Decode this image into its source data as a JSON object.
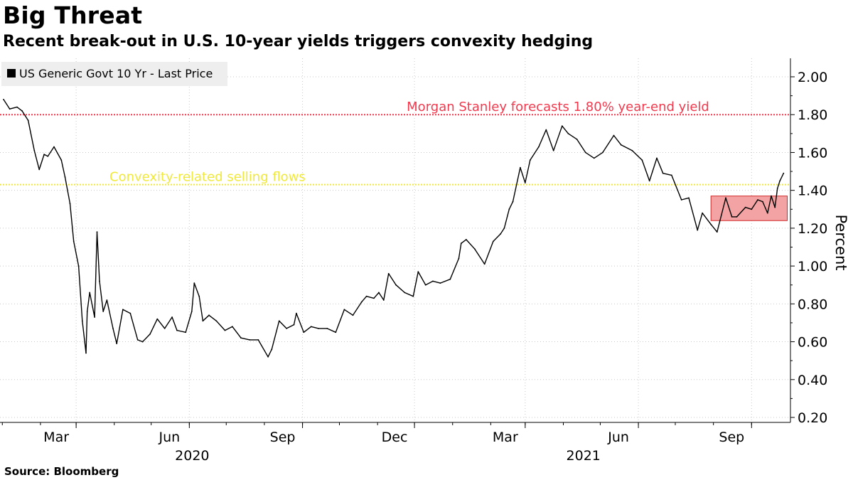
{
  "header": {
    "title": "Big Threat",
    "subtitle": "Recent break-out in U.S. 10-year yields triggers convexity hedging"
  },
  "footer": {
    "source": "Source: Bloomberg"
  },
  "chart_data": {
    "type": "line",
    "legend": {
      "entries": [
        "US Generic Govt 10 Yr - Last Price"
      ],
      "placement": "top-left"
    },
    "ylabel": "Percent",
    "ylim": [
      0.18,
      2.1
    ],
    "xlim": [
      "2020-01-02",
      "2021-09-17"
    ],
    "y_axis_side": "right",
    "grid": true,
    "y_ticks": [
      "0.20",
      "0.40",
      "0.60",
      "0.80",
      "1.00",
      "1.20",
      "1.40",
      "1.60",
      "1.80",
      "2.00"
    ],
    "x_ticks": [
      {
        "date": "2020-03-01",
        "label": "Mar"
      },
      {
        "date": "2020-06-01",
        "label": "Jun"
      },
      {
        "date": "2020-09-01",
        "label": "Sep"
      },
      {
        "date": "2020-12-01",
        "label": "Dec"
      },
      {
        "date": "2021-03-01",
        "label": "Mar"
      },
      {
        "date": "2021-06-01",
        "label": "Jun"
      },
      {
        "date": "2021-09-01",
        "label": "Sep"
      }
    ],
    "year_labels": [
      {
        "date": "2020-06-01",
        "label": "2020"
      },
      {
        "date": "2021-04-15",
        "label": "2021"
      }
    ],
    "series": [
      {
        "name": "US Generic Govt 10 Yr - Last Price",
        "color": "#000000",
        "points": [
          [
            "2020-01-02",
            1.88
          ],
          [
            "2020-01-07",
            1.83
          ],
          [
            "2020-01-13",
            1.84
          ],
          [
            "2020-01-17",
            1.82
          ],
          [
            "2020-01-22",
            1.77
          ],
          [
            "2020-01-27",
            1.61
          ],
          [
            "2020-01-31",
            1.51
          ],
          [
            "2020-02-04",
            1.59
          ],
          [
            "2020-02-07",
            1.58
          ],
          [
            "2020-02-12",
            1.63
          ],
          [
            "2020-02-18",
            1.56
          ],
          [
            "2020-02-21",
            1.47
          ],
          [
            "2020-02-25",
            1.33
          ],
          [
            "2020-02-28",
            1.13
          ],
          [
            "2020-03-03",
            1.0
          ],
          [
            "2020-03-06",
            0.71
          ],
          [
            "2020-03-09",
            0.54
          ],
          [
            "2020-03-10",
            0.76
          ],
          [
            "2020-03-12",
            0.86
          ],
          [
            "2020-03-16",
            0.73
          ],
          [
            "2020-03-18",
            1.18
          ],
          [
            "2020-03-20",
            0.92
          ],
          [
            "2020-03-23",
            0.76
          ],
          [
            "2020-03-26",
            0.82
          ],
          [
            "2020-03-31",
            0.67
          ],
          [
            "2020-04-03",
            0.59
          ],
          [
            "2020-04-08",
            0.77
          ],
          [
            "2020-04-14",
            0.75
          ],
          [
            "2020-04-20",
            0.61
          ],
          [
            "2020-04-24",
            0.6
          ],
          [
            "2020-04-30",
            0.64
          ],
          [
            "2020-05-06",
            0.72
          ],
          [
            "2020-05-12",
            0.67
          ],
          [
            "2020-05-18",
            0.73
          ],
          [
            "2020-05-22",
            0.66
          ],
          [
            "2020-05-29",
            0.65
          ],
          [
            "2020-06-03",
            0.76
          ],
          [
            "2020-06-05",
            0.91
          ],
          [
            "2020-06-09",
            0.84
          ],
          [
            "2020-06-12",
            0.71
          ],
          [
            "2020-06-17",
            0.74
          ],
          [
            "2020-06-23",
            0.71
          ],
          [
            "2020-06-30",
            0.66
          ],
          [
            "2020-07-06",
            0.68
          ],
          [
            "2020-07-13",
            0.62
          ],
          [
            "2020-07-20",
            0.61
          ],
          [
            "2020-07-27",
            0.61
          ],
          [
            "2020-08-04",
            0.52
          ],
          [
            "2020-08-07",
            0.56
          ],
          [
            "2020-08-13",
            0.71
          ],
          [
            "2020-08-19",
            0.67
          ],
          [
            "2020-08-25",
            0.69
          ],
          [
            "2020-08-27",
            0.75
          ],
          [
            "2020-09-02",
            0.65
          ],
          [
            "2020-09-08",
            0.68
          ],
          [
            "2020-09-14",
            0.67
          ],
          [
            "2020-09-21",
            0.67
          ],
          [
            "2020-09-28",
            0.65
          ],
          [
            "2020-10-05",
            0.77
          ],
          [
            "2020-10-12",
            0.74
          ],
          [
            "2020-10-19",
            0.81
          ],
          [
            "2020-10-23",
            0.84
          ],
          [
            "2020-10-29",
            0.83
          ],
          [
            "2020-11-02",
            0.86
          ],
          [
            "2020-11-06",
            0.82
          ],
          [
            "2020-11-10",
            0.96
          ],
          [
            "2020-11-16",
            0.9
          ],
          [
            "2020-11-23",
            0.86
          ],
          [
            "2020-11-30",
            0.84
          ],
          [
            "2020-12-04",
            0.97
          ],
          [
            "2020-12-10",
            0.9
          ],
          [
            "2020-12-16",
            0.92
          ],
          [
            "2020-12-22",
            0.91
          ],
          [
            "2020-12-30",
            0.93
          ],
          [
            "2021-01-06",
            1.04
          ],
          [
            "2021-01-08",
            1.12
          ],
          [
            "2021-01-12",
            1.14
          ],
          [
            "2021-01-19",
            1.09
          ],
          [
            "2021-01-27",
            1.01
          ],
          [
            "2021-02-03",
            1.13
          ],
          [
            "2021-02-09",
            1.17
          ],
          [
            "2021-02-12",
            1.2
          ],
          [
            "2021-02-16",
            1.3
          ],
          [
            "2021-02-19",
            1.34
          ],
          [
            "2021-02-25",
            1.52
          ],
          [
            "2021-03-01",
            1.44
          ],
          [
            "2021-03-05",
            1.56
          ],
          [
            "2021-03-12",
            1.63
          ],
          [
            "2021-03-18",
            1.72
          ],
          [
            "2021-03-24",
            1.61
          ],
          [
            "2021-03-31",
            1.74
          ],
          [
            "2021-04-05",
            1.7
          ],
          [
            "2021-04-12",
            1.67
          ],
          [
            "2021-04-19",
            1.6
          ],
          [
            "2021-04-26",
            1.57
          ],
          [
            "2021-05-03",
            1.6
          ],
          [
            "2021-05-12",
            1.69
          ],
          [
            "2021-05-18",
            1.64
          ],
          [
            "2021-05-27",
            1.61
          ],
          [
            "2021-06-04",
            1.56
          ],
          [
            "2021-06-10",
            1.45
          ],
          [
            "2021-06-16",
            1.57
          ],
          [
            "2021-06-21",
            1.49
          ],
          [
            "2021-06-28",
            1.48
          ],
          [
            "2021-07-06",
            1.35
          ],
          [
            "2021-07-12",
            1.36
          ],
          [
            "2021-07-19",
            1.19
          ],
          [
            "2021-07-23",
            1.28
          ],
          [
            "2021-07-30",
            1.22
          ],
          [
            "2021-08-04",
            1.18
          ],
          [
            "2021-08-11",
            1.36
          ],
          [
            "2021-08-16",
            1.26
          ],
          [
            "2021-08-20",
            1.26
          ],
          [
            "2021-08-27",
            1.31
          ],
          [
            "2021-09-01",
            1.3
          ],
          [
            "2021-09-06",
            1.35
          ],
          [
            "2021-09-10",
            1.34
          ],
          [
            "2021-09-14",
            1.28
          ],
          [
            "2021-09-17",
            1.37
          ],
          [
            "2021-09-20",
            1.31
          ],
          [
            "2021-09-22",
            1.41
          ],
          [
            "2021-09-24",
            1.45
          ],
          [
            "2021-09-27",
            1.49
          ]
        ]
      }
    ],
    "reference_lines": [
      {
        "y": 1.8,
        "label": "Morgan Stanley forecasts 1.80% year-end yield",
        "color": "#f23a4e",
        "style": "dotted"
      },
      {
        "y": 1.43,
        "label": "Convexity-related selling flows",
        "color": "#f0e93b",
        "style": "dotted"
      }
    ],
    "shaded_region": {
      "x": [
        "2021-07-30",
        "2021-09-30"
      ],
      "y": [
        1.24,
        1.37
      ],
      "fill": "#f3a3a3",
      "stroke": "#d22a2a"
    }
  }
}
